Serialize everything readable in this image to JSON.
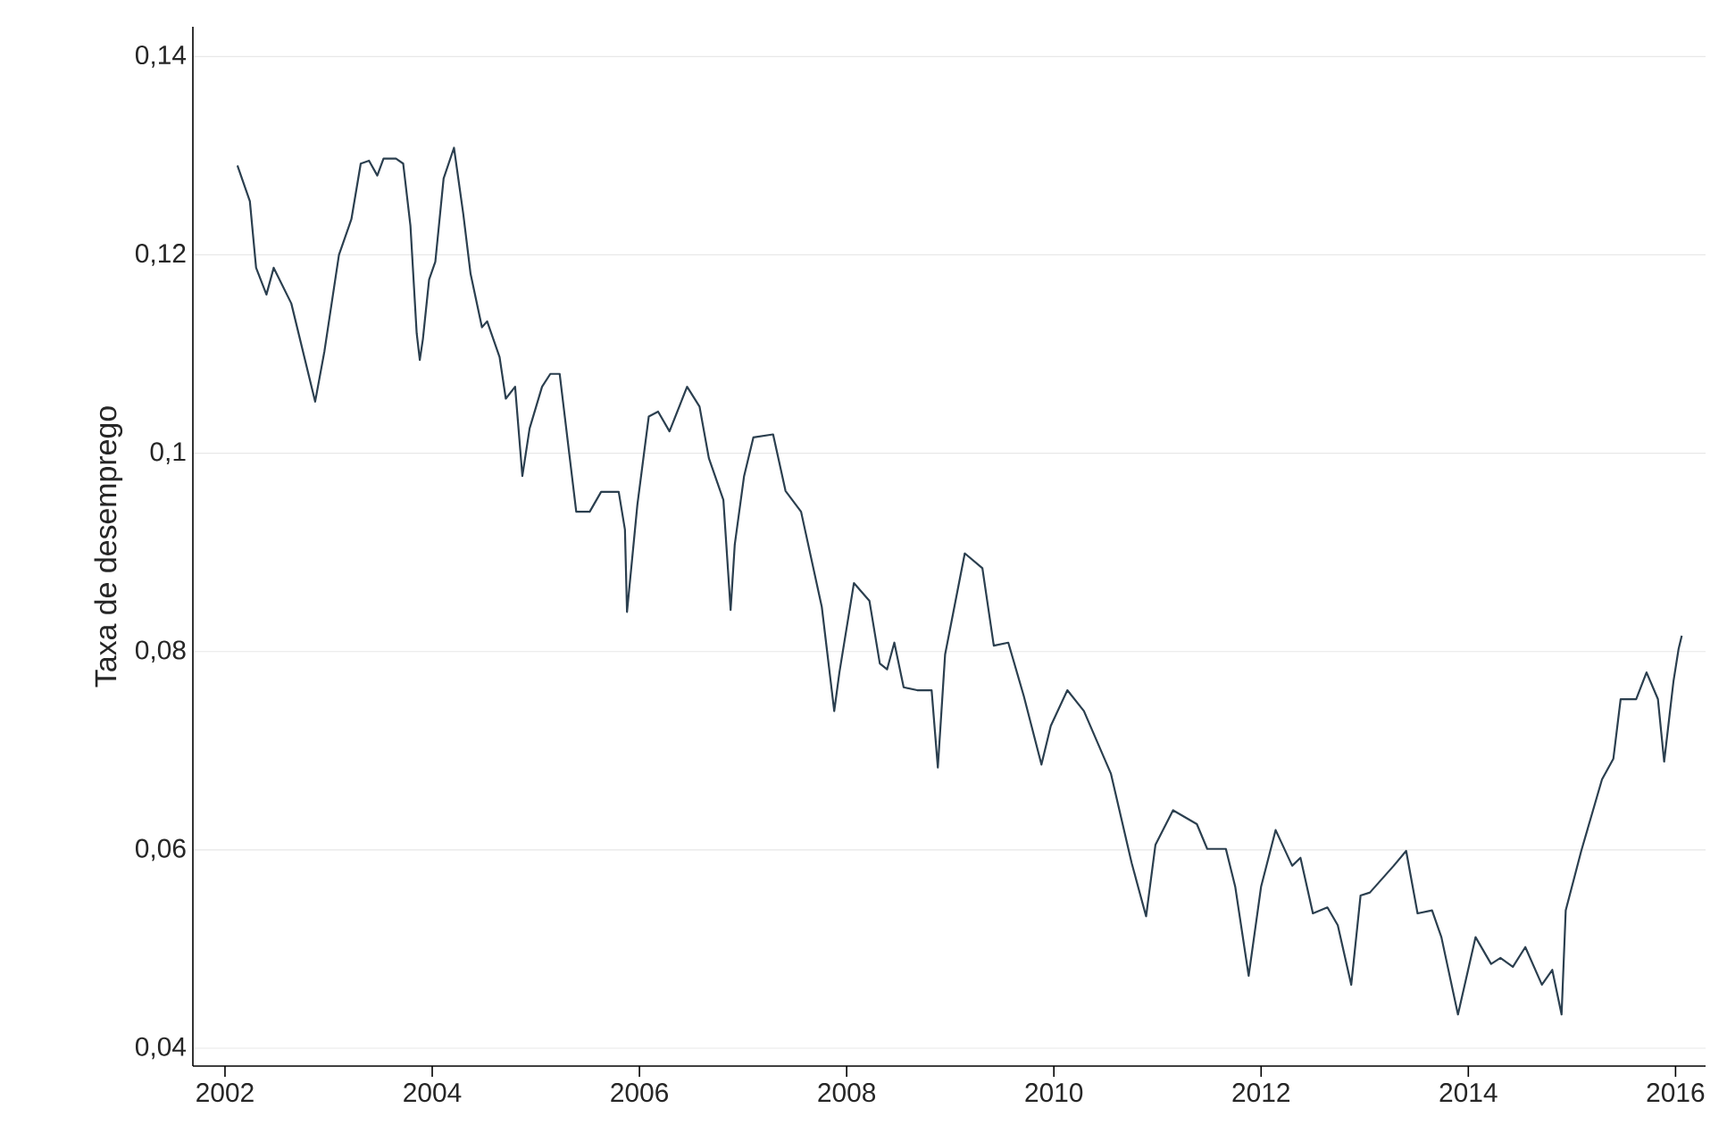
{
  "chart_data": {
    "type": "line",
    "ylabel": "Taxa de desemprego",
    "x": [
      2002.12,
      2002.24,
      2002.3,
      2002.4,
      2002.47,
      2002.64,
      2002.87,
      2002.96,
      2003.1,
      2003.22,
      2003.31,
      2003.39,
      2003.47,
      2003.53,
      2003.65,
      2003.72,
      2003.79,
      2003.85,
      2003.88,
      2003.91,
      2003.97,
      2004.03,
      2004.11,
      2004.21,
      2004.3,
      2004.37,
      2004.48,
      2004.53,
      2004.65,
      2004.71,
      2004.8,
      2004.87,
      2004.94,
      2005.06,
      2005.14,
      2005.23,
      2005.39,
      2005.52,
      2005.63,
      2005.8,
      2005.86,
      2005.88,
      2005.98,
      2006.09,
      2006.18,
      2006.29,
      2006.46,
      2006.58,
      2006.67,
      2006.81,
      2006.88,
      2006.92,
      2007.01,
      2007.1,
      2007.29,
      2007.41,
      2007.56,
      2007.76,
      2007.88,
      2007.93,
      2008.07,
      2008.22,
      2008.32,
      2008.39,
      2008.46,
      2008.55,
      2008.68,
      2008.82,
      2008.88,
      2008.95,
      2009.14,
      2009.31,
      2009.42,
      2009.56,
      2009.71,
      2009.88,
      2009.97,
      2010.13,
      2010.29,
      2010.55,
      2010.75,
      2010.89,
      2010.98,
      2011.15,
      2011.38,
      2011.48,
      2011.66,
      2011.75,
      2011.88,
      2012.0,
      2012.14,
      2012.3,
      2012.38,
      2012.5,
      2012.64,
      2012.74,
      2012.87,
      2012.96,
      2013.05,
      2013.28,
      2013.4,
      2013.51,
      2013.65,
      2013.74,
      2013.9,
      2014.07,
      2014.22,
      2014.31,
      2014.43,
      2014.55,
      2014.71,
      2014.81,
      2014.9,
      2014.94,
      2015.09,
      2015.29,
      2015.4,
      2015.47,
      2015.62,
      2015.72,
      2015.83,
      2015.89,
      2015.98,
      2016.03,
      2016.06
    ],
    "series": [
      {
        "color": "#2b3f4f",
        "values": [
          0.129,
          0.1254,
          0.1187,
          0.116,
          0.1187,
          0.1151,
          0.1052,
          0.1103,
          0.12,
          0.1236,
          0.1292,
          0.1295,
          0.128,
          0.1297,
          0.1297,
          0.1292,
          0.1229,
          0.1121,
          0.1094,
          0.1115,
          0.1175,
          0.1193,
          0.1277,
          0.1308,
          0.1241,
          0.1181,
          0.1127,
          0.1133,
          0.1097,
          0.1055,
          0.1067,
          0.0977,
          0.1025,
          0.1067,
          0.108,
          0.108,
          0.0941,
          0.0941,
          0.0961,
          0.0961,
          0.0923,
          0.084,
          0.0948,
          0.1037,
          0.1042,
          0.1022,
          0.1067,
          0.1047,
          0.0995,
          0.0953,
          0.0842,
          0.0908,
          0.0977,
          0.1016,
          0.1019,
          0.0962,
          0.0941,
          0.0845,
          0.074,
          0.0779,
          0.0869,
          0.0851,
          0.0788,
          0.0782,
          0.0809,
          0.0764,
          0.0761,
          0.0761,
          0.0683,
          0.0797,
          0.0899,
          0.0884,
          0.0806,
          0.0809,
          0.0755,
          0.0686,
          0.0725,
          0.0761,
          0.074,
          0.0677,
          0.0587,
          0.0533,
          0.0605,
          0.064,
          0.0626,
          0.0601,
          0.0601,
          0.0563,
          0.0473,
          0.0563,
          0.062,
          0.0584,
          0.0592,
          0.0536,
          0.0542,
          0.0524,
          0.0464,
          0.0554,
          0.0557,
          0.0584,
          0.0599,
          0.0536,
          0.0539,
          0.0512,
          0.0434,
          0.0512,
          0.0485,
          0.0491,
          0.0482,
          0.0502,
          0.0464,
          0.0479,
          0.0434,
          0.0539,
          0.0599,
          0.0671,
          0.0692,
          0.0752,
          0.0752,
          0.0779,
          0.0752,
          0.0689,
          0.077,
          0.0803,
          0.0816
        ]
      }
    ],
    "xlim": [
      2001.69,
      2016.29
    ],
    "ylim": [
      0.0382,
      0.143
    ],
    "xticks": [
      2002,
      2004,
      2006,
      2008,
      2010,
      2012,
      2014,
      2016
    ],
    "yticks": [
      {
        "value": 0.04,
        "label": "0,04"
      },
      {
        "value": 0.06,
        "label": "0,06"
      },
      {
        "value": 0.08,
        "label": "0,08"
      },
      {
        "value": 0.1,
        "label": "0,1"
      },
      {
        "value": 0.12,
        "label": "0,12"
      },
      {
        "value": 0.14,
        "label": "0,14"
      }
    ],
    "grid": "y",
    "marker": "none",
    "line_style": "solid"
  }
}
